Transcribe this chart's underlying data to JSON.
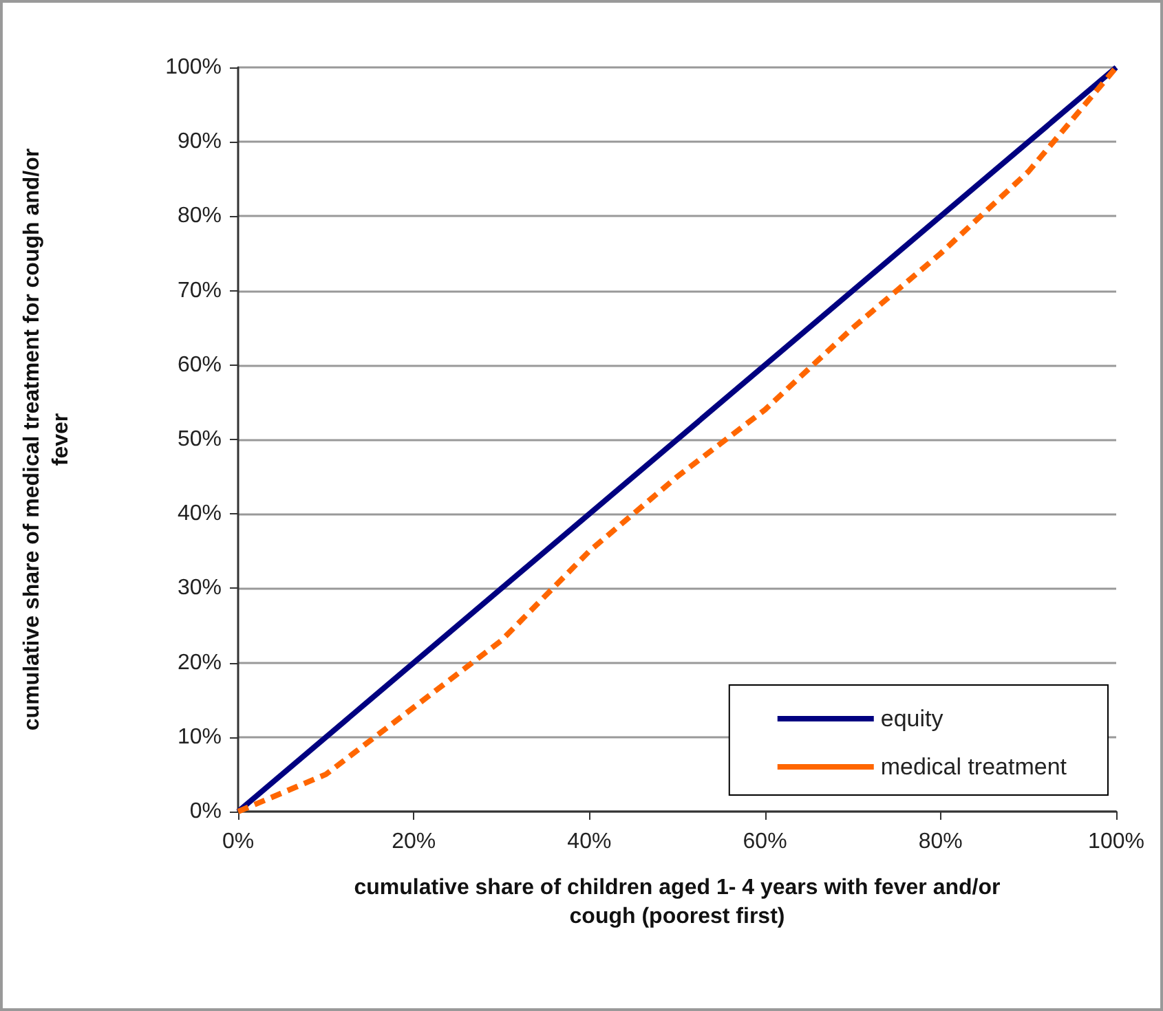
{
  "chart_data": {
    "type": "line",
    "xlabel": "cumulative share of children aged 1- 4 years with fever and/or\ncough (poorest first)",
    "ylabel": "cumulative share of medical treatment for cough and/or\nfever",
    "x": [
      0,
      10,
      20,
      30,
      40,
      50,
      60,
      70,
      80,
      90,
      100
    ],
    "series": [
      {
        "name": "equity",
        "color": "#000080",
        "line_style": "solid",
        "x": [
          0,
          100
        ],
        "values": [
          0,
          100
        ]
      },
      {
        "name": "medical treatment",
        "color": "#ff6600",
        "line_style": "dashed",
        "values": [
          0,
          5,
          14,
          23,
          35,
          45,
          54,
          65,
          75,
          86,
          100
        ]
      }
    ],
    "xlim": [
      0,
      100
    ],
    "xticks": [
      {
        "value": 0,
        "label": "0%"
      },
      {
        "value": 20,
        "label": "20%"
      },
      {
        "value": 40,
        "label": "40%"
      },
      {
        "value": 60,
        "label": "60%"
      },
      {
        "value": 80,
        "label": "80%"
      },
      {
        "value": 100,
        "label": "100%"
      }
    ],
    "ylim": [
      0,
      100
    ],
    "yticks": [
      {
        "value": 0,
        "label": "0%"
      },
      {
        "value": 10,
        "label": "10%"
      },
      {
        "value": 20,
        "label": "20%"
      },
      {
        "value": 30,
        "label": "30%"
      },
      {
        "value": 40,
        "label": "40%"
      },
      {
        "value": 50,
        "label": "50%"
      },
      {
        "value": 60,
        "label": "60%"
      },
      {
        "value": 70,
        "label": "70%"
      },
      {
        "value": 80,
        "label": "80%"
      },
      {
        "value": 90,
        "label": "90%"
      },
      {
        "value": 100,
        "label": "100%"
      }
    ],
    "grid": "y",
    "legend": "bottom right",
    "marker": "none"
  }
}
